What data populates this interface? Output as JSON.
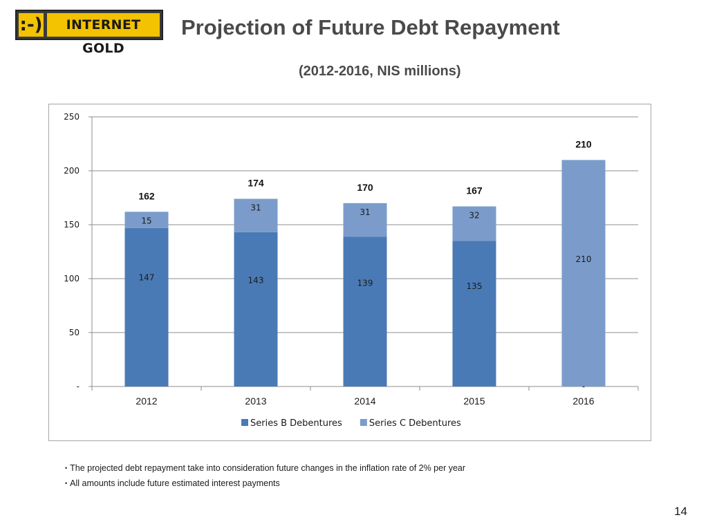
{
  "logo": {
    "mark": ":-)",
    "text": "INTERNET GOLD"
  },
  "page": {
    "title": "Projection of Future Debt Repayment",
    "subtitle": "(2012-2016, NIS millions)",
    "page_number": "14"
  },
  "notes": [
    "The projected debt repayment take into consideration future changes in the inflation rate of 2% per year",
    "All amounts include future estimated interest payments"
  ],
  "chart_data": {
    "type": "bar",
    "stacked": true,
    "categories": [
      "2012",
      "2013",
      "2014",
      "2015",
      "2016"
    ],
    "series": [
      {
        "name": "Series B Debentures",
        "values": [
          147,
          143,
          139,
          135,
          0
        ],
        "color": "#4a7ab5"
      },
      {
        "name": "Series C Debentures",
        "values": [
          15,
          31,
          31,
          32,
          210
        ],
        "color": "#7b9ccb"
      }
    ],
    "segment_labels": [
      [
        "147",
        "143",
        "139",
        "135",
        "-"
      ],
      [
        "15",
        "31",
        "31",
        "32",
        "210"
      ]
    ],
    "totals": [
      162,
      174,
      170,
      167,
      210
    ],
    "ylim": [
      0,
      250
    ],
    "yticks": [
      0,
      50,
      100,
      150,
      200,
      250
    ],
    "ytick_labels": [
      "-",
      "50",
      "100",
      "150",
      "200",
      "250"
    ],
    "grid": true,
    "legend": "bottom",
    "title": "",
    "xlabel": "",
    "ylabel": ""
  }
}
